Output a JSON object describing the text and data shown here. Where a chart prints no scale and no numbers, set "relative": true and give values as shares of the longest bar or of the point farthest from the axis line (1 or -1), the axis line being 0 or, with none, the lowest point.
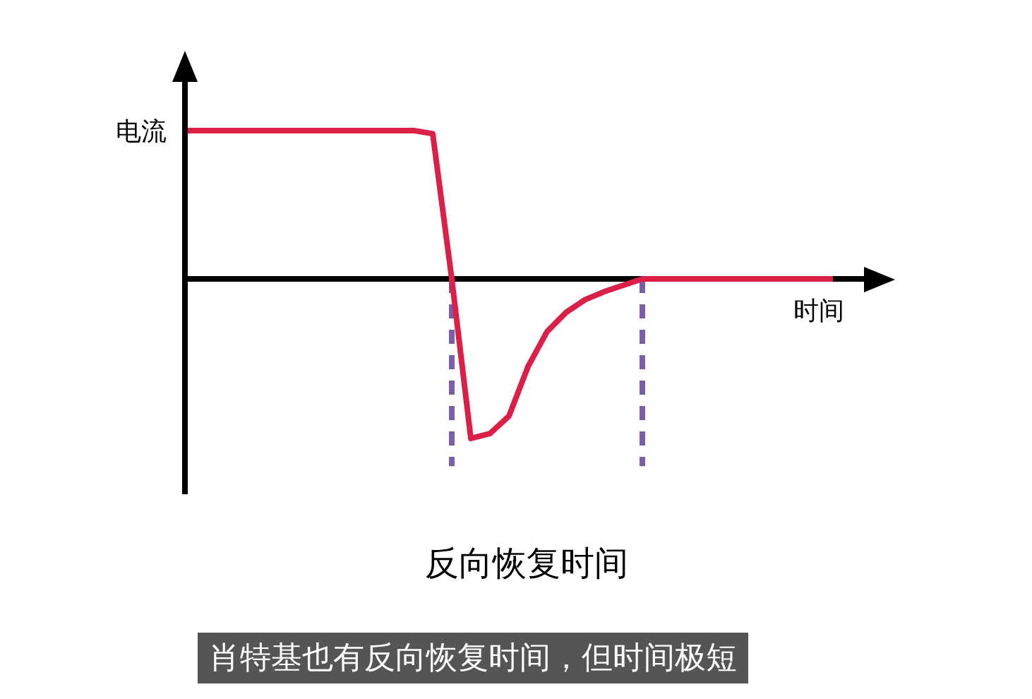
{
  "chart_data": {
    "type": "line",
    "relative": true,
    "title": "反向恢复时间",
    "xlabel": "时间",
    "ylabel": "电流",
    "annotations": [
      "肖特基也有反向恢复时间，但时间极短"
    ],
    "categories": [
      null,
      null,
      null,
      null,
      null,
      null,
      null,
      null,
      null,
      null,
      null,
      null,
      null,
      null,
      null,
      null,
      null,
      null,
      null,
      null,
      null,
      null,
      null,
      null,
      null,
      null,
      null,
      null,
      null,
      null,
      null,
      null,
      null,
      null,
      null
    ],
    "series": [
      {
        "color": "#dc1f47",
        "values": [
          0.93,
          0.93,
          0.93,
          0.93,
          0.93,
          0.93,
          0.93,
          0.93,
          0.93,
          0.93,
          0.93,
          0.93,
          0.93,
          0.91,
          0,
          -1,
          -0.97,
          -0.86,
          -0.55,
          -0.33,
          -0.21,
          -0.13,
          -0.08,
          -0.04,
          0,
          0,
          0,
          0,
          0,
          0,
          0,
          0,
          0,
          0,
          0
        ]
      }
    ]
  }
}
